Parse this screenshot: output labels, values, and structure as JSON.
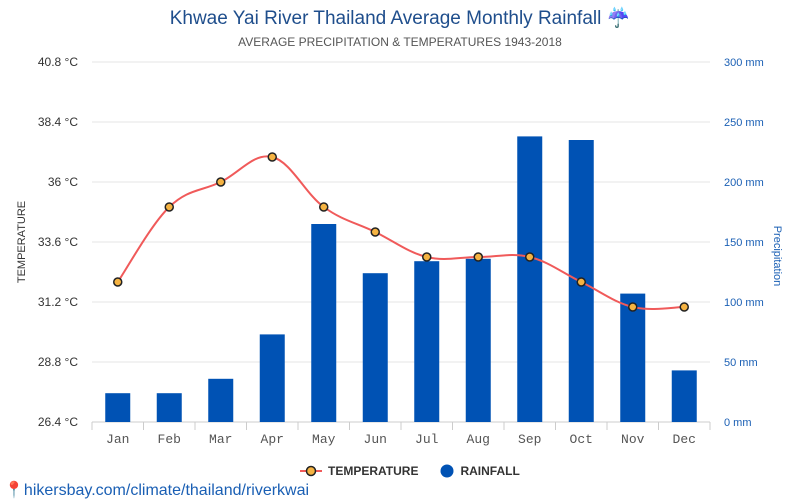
{
  "chart_data": {
    "type": "bar+line",
    "title": "Khwae Yai River Thailand Average Monthly Rainfall",
    "title_icon": "umbrella-rain-icon",
    "subtitle": "AVERAGE PRECIPITATION & TEMPERATURES 1943-2018",
    "categories": [
      "Jan",
      "Feb",
      "Mar",
      "Apr",
      "May",
      "Jun",
      "Jul",
      "Aug",
      "Sep",
      "Oct",
      "Nov",
      "Dec"
    ],
    "left_axis": {
      "label": "TEMPERATURE",
      "ylim": [
        26.4,
        40.8
      ],
      "ticks": [
        "26.4 °C",
        "28.8 °C",
        "31.2 °C",
        "33.6 °C",
        "36 °C",
        "38.4 °C",
        "40.8 °C"
      ]
    },
    "right_axis": {
      "label": "Precipitation",
      "ylim": [
        0,
        300
      ],
      "ticks": [
        "0 mm",
        "50 mm",
        "100 mm",
        "150 mm",
        "200 mm",
        "250 mm",
        "300 mm"
      ]
    },
    "series": [
      {
        "name": "TEMPERATURE",
        "type": "line",
        "axis": "left",
        "color": "#f05a5a",
        "marker_color": "#f5b342",
        "values": [
          32,
          35,
          36,
          37,
          35,
          34,
          33,
          33,
          33,
          32,
          31,
          31
        ]
      },
      {
        "name": "RAINFALL",
        "type": "bar",
        "axis": "right",
        "color": "#0052b4",
        "values": [
          24,
          24,
          36,
          73,
          165,
          124,
          134,
          136,
          238,
          235,
          107,
          43
        ]
      }
    ],
    "legend": "bottom",
    "grid": true
  },
  "source": "hikersbay.com/climate/thailand/riverkwai"
}
